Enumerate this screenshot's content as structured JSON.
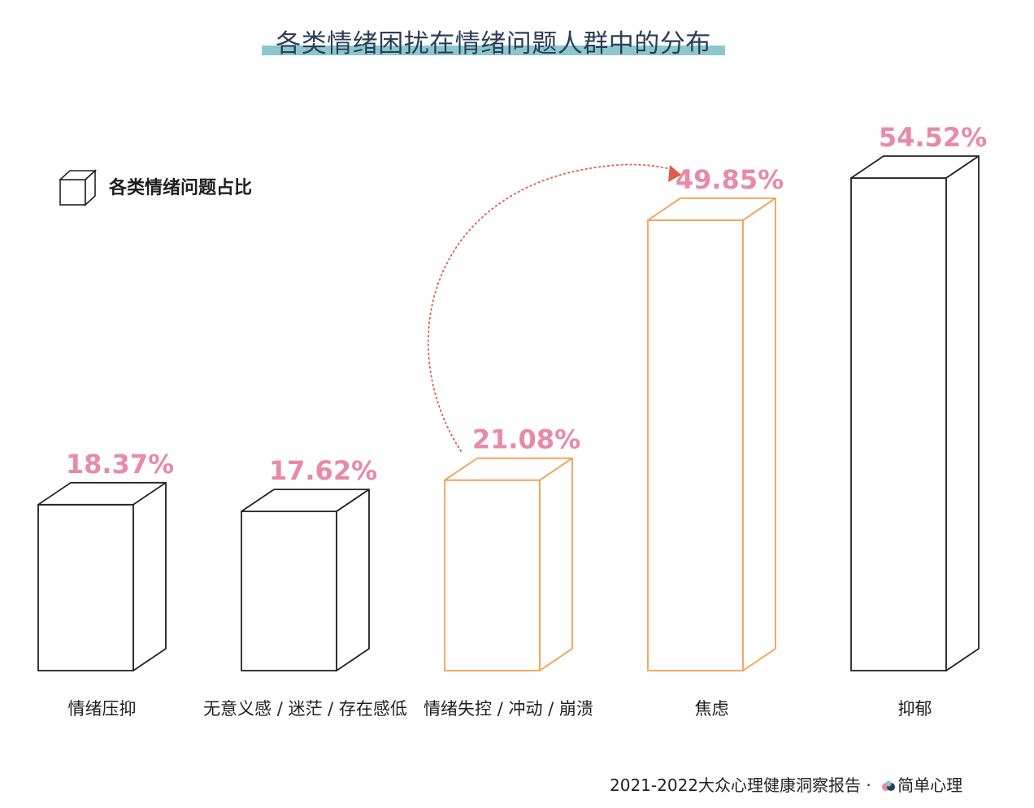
{
  "title": "各类情绪困扰在情绪问题人群中的分布",
  "legend": {
    "label": "各类情绪问题占比",
    "icon": "cube-icon"
  },
  "footer": {
    "report": "2021-2022大众心理健康洞察报告 · ",
    "brand": "简单心理",
    "logo_icon": "brand-logo-icon"
  },
  "colors": {
    "default_outline": "#222222",
    "highlight_outline": "#f0a054",
    "value_label": "#e88aa6",
    "title_underline": "#8cc7cf",
    "arrow": "#e05a4a"
  },
  "chart_data": {
    "type": "bar",
    "categories": [
      "情绪压抑",
      "无意义感 / 迷茫 / 存在感低",
      "情绪失控 / 冲动 / 崩溃",
      "焦虑",
      "抑郁"
    ],
    "values": [
      18.37,
      17.62,
      21.08,
      49.85,
      54.52
    ],
    "value_labels": [
      "18.37%",
      "17.62%",
      "21.08%",
      "49.85%",
      "54.52%"
    ],
    "highlighted": [
      false,
      false,
      true,
      true,
      false
    ],
    "unit": "%",
    "title": "各类情绪困扰在情绪问题人群中的分布",
    "xlabel": "",
    "ylabel": "",
    "ylim": [
      0,
      60
    ],
    "grid": false,
    "legend_position": "top-left",
    "annotation": {
      "type": "curved-arrow",
      "from": "情绪失控 / 冲动 / 崩溃",
      "to": "焦虑"
    }
  }
}
